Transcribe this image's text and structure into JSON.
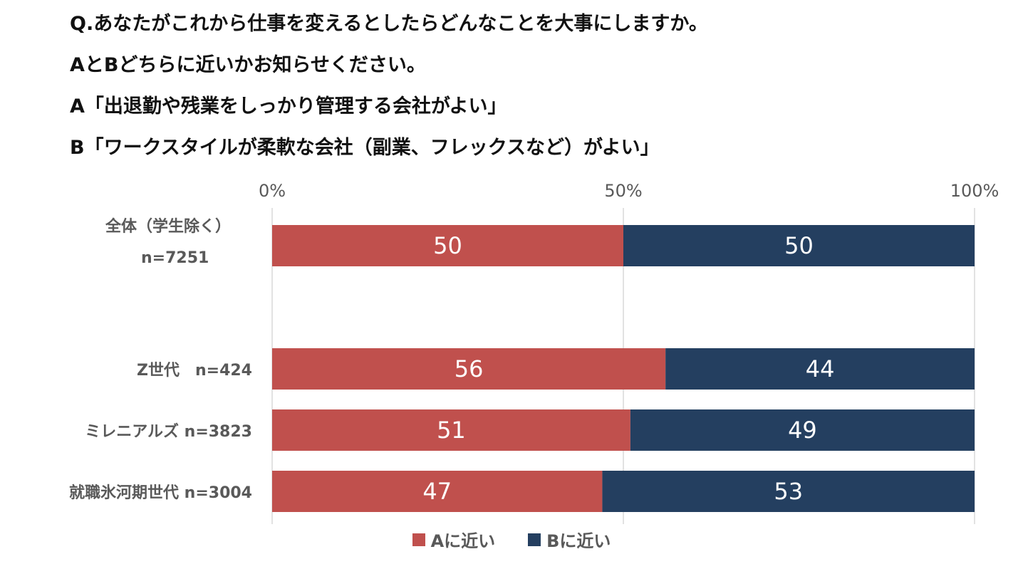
{
  "question": {
    "lines": [
      "Q.あなたがこれから仕事を変えるとしたらどんなことを大事にしますか。",
      "AとBどちらに近いかお知らせください。",
      "A「出退勤や残業をしっかり管理する会社がよい」",
      "B「ワークスタイルが柔軟な会社（副業、フレックスなど）がよい」"
    ]
  },
  "chart_data": {
    "type": "bar",
    "orientation": "horizontal",
    "stacked": true,
    "percent_axis": true,
    "xlim": [
      0,
      100
    ],
    "x_ticks": [
      "0%",
      "50%",
      "100%"
    ],
    "x_tick_values": [
      0,
      50,
      100
    ],
    "grid": true,
    "legend_position": "bottom",
    "categories": [
      "全体（学生除く）\nn=7251",
      "Z世代　n=424",
      "ミレニアルズ n=3823",
      "就職氷河期世代 n=3004"
    ],
    "series": [
      {
        "name": "Aに近い",
        "color": "#c0504d",
        "values": [
          50,
          56,
          51,
          47
        ]
      },
      {
        "name": "Bに近い",
        "color": "#243f60",
        "values": [
          50,
          44,
          49,
          53
        ]
      }
    ]
  }
}
